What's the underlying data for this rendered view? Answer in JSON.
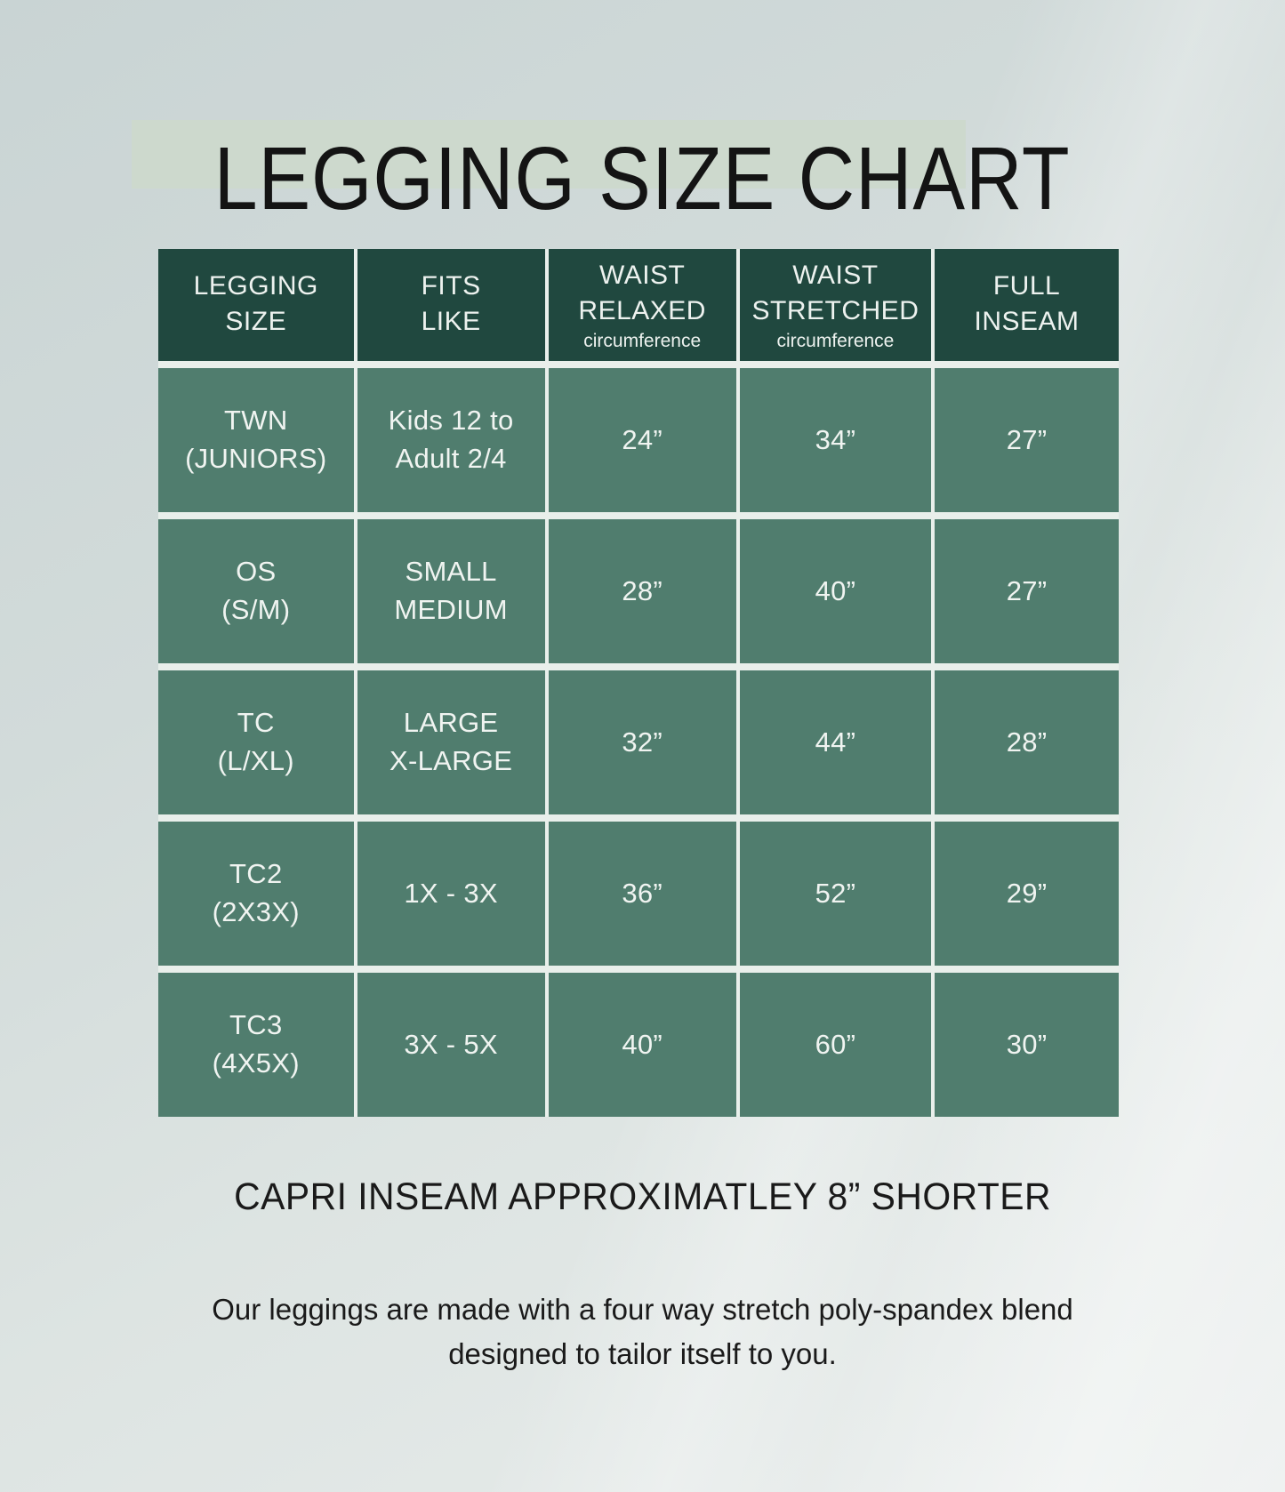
{
  "title": "LEGGING SIZE CHART",
  "table": {
    "columns": [
      {
        "label": "LEGGING\nSIZE",
        "sub": ""
      },
      {
        "label": "FITS\nLIKE",
        "sub": ""
      },
      {
        "label": "WAIST\nRELAXED",
        "sub": "circumference"
      },
      {
        "label": "WAIST\nSTRETCHED",
        "sub": "circumference"
      },
      {
        "label": "FULL\nINSEAM",
        "sub": ""
      }
    ],
    "rows": [
      {
        "size": "TWN\n(JUNIORS)",
        "fits": "Kids 12 to\nAdult 2/4",
        "relaxed": "24”",
        "stretched": "34”",
        "inseam": "27”"
      },
      {
        "size": "OS\n(S/M)",
        "fits": "SMALL\nMEDIUM",
        "relaxed": "28”",
        "stretched": "40”",
        "inseam": "27”"
      },
      {
        "size": "TC\n(L/XL)",
        "fits": "LARGE\nX-LARGE",
        "relaxed": "32”",
        "stretched": "44”",
        "inseam": "28”"
      },
      {
        "size": "TC2\n(2X3X)",
        "fits": "1X - 3X",
        "relaxed": "36”",
        "stretched": "52”",
        "inseam": "29”"
      },
      {
        "size": "TC3\n(4X5X)",
        "fits": "3X - 5X",
        "relaxed": "40”",
        "stretched": "60”",
        "inseam": "30”"
      }
    ]
  },
  "footer": {
    "capri_note": "CAPRI INSEAM APPROXIMATLEY 8” SHORTER",
    "description": "Our leggings are made with a four way stretch poly-spandex blend\ndesigned to tailor itself to you."
  },
  "colors": {
    "header_bg": "#20483f",
    "cell_bg": "#507d6e",
    "grid_lines": "#e9efeb",
    "title_band": "#cdd9cd",
    "cell_text": "#f0f4f1",
    "title_text": "#141414",
    "background_top": "#c9d4d4",
    "background_bottom": "#e9edec"
  },
  "chart_data": {
    "type": "table",
    "title": "LEGGING SIZE CHART",
    "columns": [
      "LEGGING SIZE",
      "FITS LIKE",
      "WAIST RELAXED circumference",
      "WAIST STRETCHED circumference",
      "FULL INSEAM"
    ],
    "rows": [
      [
        "TWN (JUNIORS)",
        "Kids 12 to Adult 2/4",
        "24”",
        "34”",
        "27”"
      ],
      [
        "OS (S/M)",
        "SMALL MEDIUM",
        "28”",
        "40”",
        "27”"
      ],
      [
        "TC (L/XL)",
        "LARGE X-LARGE",
        "32”",
        "44”",
        "28”"
      ],
      [
        "TC2 (2X3X)",
        "1X - 3X",
        "36”",
        "52”",
        "29”"
      ],
      [
        "TC3 (4X5X)",
        "3X - 5X",
        "40”",
        "60”",
        "30”"
      ]
    ],
    "notes": [
      "CAPRI INSEAM APPROXIMATLEY 8” SHORTER",
      "Our leggings are made with a four way stretch poly-spandex blend designed to tailor itself to you."
    ]
  }
}
